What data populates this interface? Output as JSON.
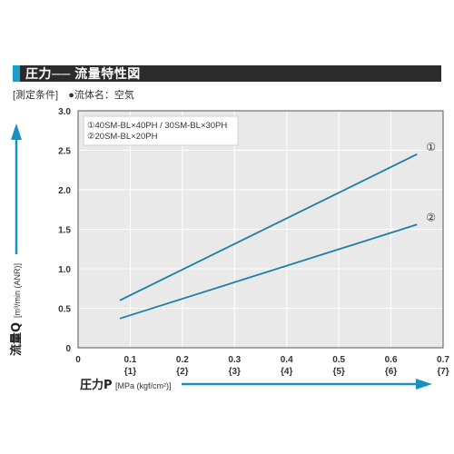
{
  "title": "圧力── 流量特性図",
  "conditions": {
    "measure_label": "[測定条件]",
    "fluid_label": "●流体名：空気"
  },
  "chart_data": {
    "type": "line",
    "title": "圧力── 流量特性図",
    "xlabel_main": "圧力P",
    "xlabel_unit": "[MPa (kgf/cm²)]",
    "ylabel_main": "流量Q",
    "ylabel_unit": "[m³/min (ANR)]",
    "xlim": [
      0,
      0.7
    ],
    "ylim": [
      0,
      3.0
    ],
    "grid": true,
    "x_ticks": [
      {
        "value": 0,
        "label": "0",
        "sub": ""
      },
      {
        "value": 0.1,
        "label": "0.1",
        "sub": "{1}"
      },
      {
        "value": 0.2,
        "label": "0.2",
        "sub": "{2}"
      },
      {
        "value": 0.3,
        "label": "0.3",
        "sub": "{3}"
      },
      {
        "value": 0.4,
        "label": "0.4",
        "sub": "{4}"
      },
      {
        "value": 0.5,
        "label": "0.5",
        "sub": "{5}"
      },
      {
        "value": 0.6,
        "label": "0.6",
        "sub": "{6}"
      },
      {
        "value": 0.7,
        "label": "0.7",
        "sub": "{7}"
      }
    ],
    "y_ticks": [
      {
        "value": 0,
        "label": "0"
      },
      {
        "value": 0.5,
        "label": "0.5"
      },
      {
        "value": 1.0,
        "label": "1.0"
      },
      {
        "value": 1.5,
        "label": "1.5"
      },
      {
        "value": 2.0,
        "label": "2.0"
      },
      {
        "value": 2.5,
        "label": "2.5"
      },
      {
        "value": 3.0,
        "label": "3.0"
      }
    ],
    "legend_placement": "top-left",
    "legend": [
      "①40SM-BL×40PH / 30SM-BL×30PH",
      "②20SM-BL×20PH"
    ],
    "series": [
      {
        "marker": "①",
        "color": "#1c7ea6",
        "x": [
          0.08,
          0.65
        ],
        "y": [
          0.6,
          2.45
        ]
      },
      {
        "marker": "②",
        "color": "#1c7ea6",
        "x": [
          0.08,
          0.65
        ],
        "y": [
          0.37,
          1.56
        ]
      }
    ],
    "axis_arrow_color": "#1a8fc4"
  }
}
